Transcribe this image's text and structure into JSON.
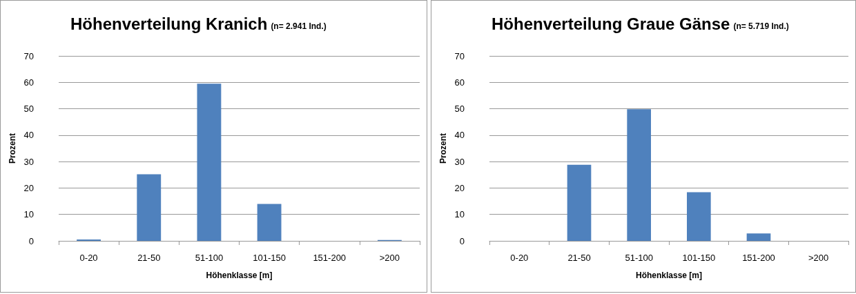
{
  "chart_data": [
    {
      "type": "bar",
      "title": "Höhenverteilung Kranich",
      "subtitle": "(n= 2.941 Ind.)",
      "xlabel": "Höhenklasse [m]",
      "ylabel": "Prozent",
      "categories": [
        "0-20",
        "21-50",
        "51-100",
        "101-150",
        "151-200",
        ">200"
      ],
      "values": [
        0.5,
        25.2,
        59.5,
        14,
        0,
        0.3
      ],
      "color": "#4f81bd",
      "ylim": [
        0,
        70
      ],
      "yticks": [
        0,
        10,
        20,
        30,
        40,
        50,
        60,
        70
      ],
      "grid": "y"
    },
    {
      "type": "bar",
      "title": "Höhenverteilung Graue Gänse",
      "subtitle": "(n= 5.719 Ind.)",
      "xlabel": "Höhenklasse [m]",
      "ylabel": "Prozent",
      "categories": [
        "0-20",
        "21-50",
        "51-100",
        "101-150",
        "151-200",
        ">200"
      ],
      "values": [
        0,
        28.8,
        49.8,
        18.4,
        2.8,
        0
      ],
      "color": "#4f81bd",
      "ylim": [
        0,
        70
      ],
      "yticks": [
        0,
        10,
        20,
        30,
        40,
        50,
        60,
        70
      ],
      "grid": "y"
    }
  ]
}
